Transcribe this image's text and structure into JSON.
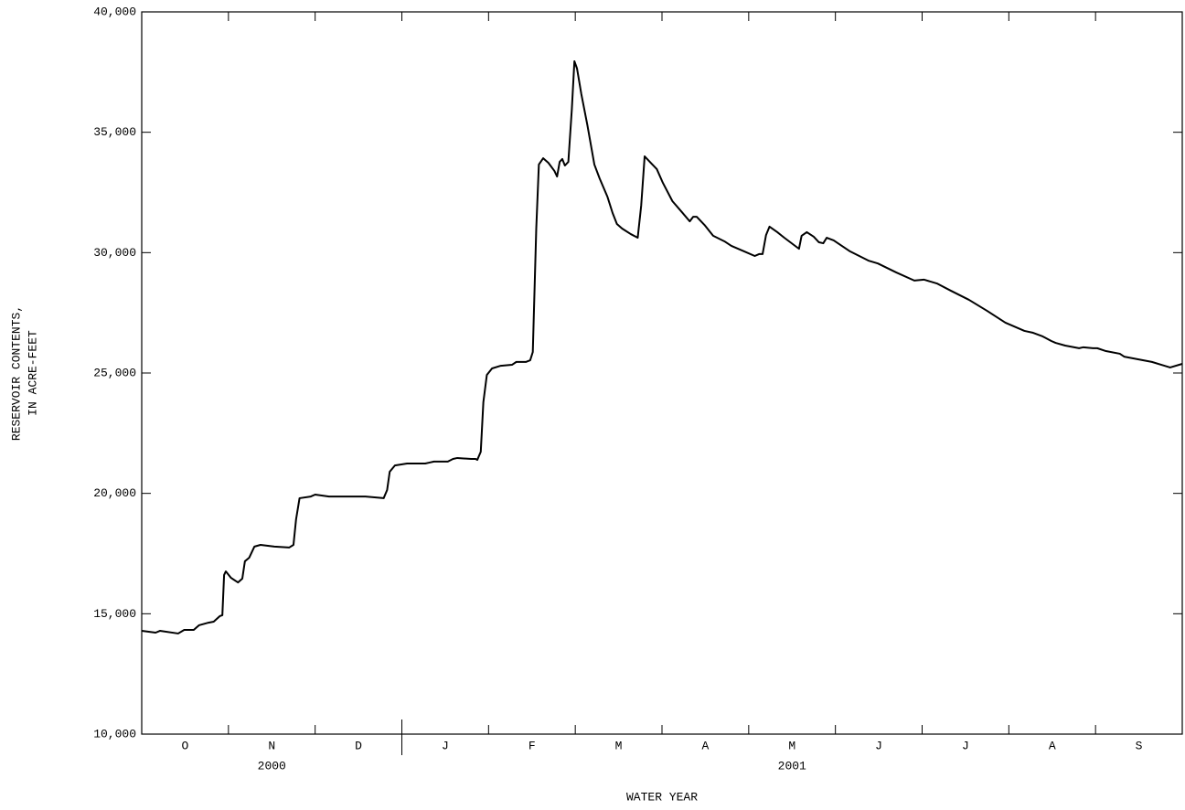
{
  "chart_data": {
    "type": "line",
    "y_label_lines": [
      "RESERVOIR CONTENTS,",
      "IN ACRE-FEET"
    ],
    "x_label": "WATER YEAR",
    "categories": [
      "O",
      "N",
      "D",
      "J",
      "F",
      "M",
      "A",
      "M",
      "J",
      "J",
      "A",
      "S"
    ],
    "year_labels": [
      "2000",
      "2001"
    ],
    "xlim": [
      0,
      12
    ],
    "ylim": [
      10000,
      40000
    ],
    "yticks": [
      {
        "value": 10000,
        "label": "10,000"
      },
      {
        "value": 15000,
        "label": "15,000"
      },
      {
        "value": 20000,
        "label": "20,000"
      },
      {
        "value": 25000,
        "label": "25,000"
      },
      {
        "value": 30000,
        "label": "30,000"
      },
      {
        "value": 35000,
        "label": "35,000"
      },
      {
        "value": 40000,
        "label": "40,000"
      }
    ],
    "color": "#000000",
    "x": [
      0,
      0.16,
      0.21,
      0.42,
      0.49,
      0.6,
      0.66,
      0.77,
      0.83,
      0.9,
      0.93,
      0.95,
      0.97,
      1.03,
      1.11,
      1.16,
      1.19,
      1.24,
      1.3,
      1.37,
      1.53,
      1.7,
      1.75,
      1.78,
      1.82,
      1.95,
      2.0,
      2.16,
      2.37,
      2.58,
      2.79,
      2.83,
      2.86,
      2.92,
      3.06,
      3.27,
      3.32,
      3.37,
      3.53,
      3.59,
      3.64,
      3.8,
      3.85,
      3.87,
      3.91,
      3.94,
      3.98,
      4.04,
      4.14,
      4.27,
      4.32,
      4.43,
      4.48,
      4.51,
      4.55,
      4.58,
      4.63,
      4.69,
      4.76,
      4.79,
      4.82,
      4.85,
      4.88,
      4.92,
      4.96,
      4.99,
      5.02,
      5.07,
      5.14,
      5.22,
      5.28,
      5.37,
      5.43,
      5.48,
      5.54,
      5.64,
      5.72,
      5.76,
      5.8,
      5.87,
      5.94,
      6.01,
      6.12,
      6.23,
      6.32,
      6.36,
      6.4,
      6.49,
      6.59,
      6.72,
      6.8,
      6.95,
      7.07,
      7.12,
      7.16,
      7.2,
      7.24,
      7.33,
      7.41,
      7.48,
      7.58,
      7.61,
      7.67,
      7.75,
      7.81,
      7.86,
      7.9,
      7.98,
      8.17,
      8.38,
      8.49,
      8.7,
      8.91,
      9.02,
      9.17,
      9.33,
      9.54,
      9.75,
      9.96,
      10.18,
      10.28,
      10.39,
      10.49,
      10.54,
      10.65,
      10.81,
      10.86,
      10.97,
      11.02,
      11.12,
      11.28,
      11.33,
      11.49,
      11.65,
      11.76,
      11.86,
      12.0
    ],
    "values": [
      14290,
      14215,
      14290,
      14180,
      14330,
      14330,
      14520,
      14630,
      14670,
      14900,
      14940,
      16610,
      16760,
      16490,
      16300,
      16460,
      17180,
      17330,
      17790,
      17860,
      17790,
      17750,
      17860,
      18920,
      19800,
      19870,
      19950,
      19870,
      19870,
      19870,
      19800,
      20140,
      20900,
      21160,
      21240,
      21240,
      21280,
      21320,
      21320,
      21430,
      21470,
      21430,
      21430,
      21390,
      21730,
      23790,
      24920,
      25190,
      25300,
      25340,
      25460,
      25460,
      25530,
      25870,
      31000,
      33660,
      33920,
      33730,
      33390,
      33160,
      33770,
      33890,
      33620,
      33770,
      35940,
      37950,
      37650,
      36580,
      35290,
      33660,
      33090,
      32330,
      31650,
      31190,
      31000,
      30770,
      30620,
      31950,
      34000,
      33730,
      33470,
      32900,
      32140,
      31680,
      31300,
      31490,
      31490,
      31150,
      30700,
      30470,
      30280,
      30050,
      29860,
      29940,
      29940,
      30730,
      31080,
      30850,
      30620,
      30430,
      30160,
      30700,
      30850,
      30660,
      30430,
      30390,
      30620,
      30510,
      30050,
      29670,
      29550,
      29180,
      28840,
      28880,
      28720,
      28420,
      28040,
      27580,
      27090,
      26750,
      26670,
      26520,
      26330,
      26250,
      26140,
      26030,
      26070,
      26030,
      26030,
      25910,
      25800,
      25680,
      25570,
      25460,
      25340,
      25230,
      25380
    ]
  }
}
